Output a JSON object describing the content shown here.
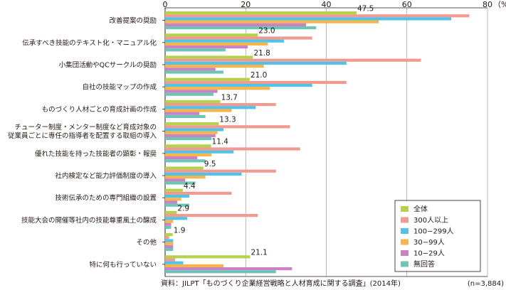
{
  "chart_data": {
    "type": "bar",
    "orientation": "horizontal",
    "unit": "（%）",
    "xlim": [
      0,
      80
    ],
    "xticks": [
      0,
      20,
      40,
      60,
      80
    ],
    "grid": true,
    "legend_position": "bottom-right",
    "categories": [
      [
        "改善提案の奨励"
      ],
      [
        "伝承すべき技能のテキスト化・マニュアル化"
      ],
      [
        "小集団活動やQCサークルの奨励"
      ],
      [
        "自社の技能マップの作成"
      ],
      [
        "ものづくり人材ごとの育成計画の作成"
      ],
      [
        "チューター制度・メンター制度など育成対象の",
        "従業員ごとに専任の指導者を配置する取組の導入"
      ],
      [
        "優れた技能を持った技能者の顕彰・報奨"
      ],
      [
        "社内検定など能力評価制度の導入"
      ],
      [
        "技術伝承のための専門組織の設置"
      ],
      [
        "技能大会の開催等社内の技能尊重風土の醸成"
      ],
      [
        "その他"
      ],
      [
        "特に何も行っていない"
      ]
    ],
    "series": [
      {
        "name": "全体",
        "color": "#b5d34a",
        "values": [
          47.5,
          23.0,
          21.8,
          21.0,
          13.7,
          13.3,
          11.4,
          9.5,
          4.4,
          2.9,
          1.9,
          21.1
        ],
        "labels": [
          "47.5",
          "23.0",
          "21.8",
          "21.0",
          "13.7",
          "13.3",
          "11.4",
          "9.5",
          "4.4",
          "2.9",
          "1.9",
          "21.1"
        ]
      },
      {
        "name": "300人以上",
        "color": "#f19a92",
        "values": [
          75.5,
          36.5,
          63.5,
          45.0,
          27.5,
          31.0,
          33.5,
          27.5,
          16.5,
          23.0,
          1.0,
          2.5
        ]
      },
      {
        "name": "100−299人",
        "color": "#4fc3e8",
        "values": [
          71.0,
          29.5,
          45.0,
          36.5,
          22.5,
          14.5,
          17.0,
          19.0,
          6.0,
          5.5,
          2.0,
          4.5
        ]
      },
      {
        "name": "30−99人",
        "color": "#f6b54a",
        "values": [
          53.0,
          25.5,
          24.5,
          26.0,
          16.5,
          13.0,
          11.5,
          10.0,
          4.0,
          2.0,
          2.0,
          14.5
        ]
      },
      {
        "name": "10−29人",
        "color": "#c983c4",
        "values": [
          35.0,
          20.5,
          12.5,
          13.0,
          8.5,
          12.5,
          8.0,
          5.0,
          3.0,
          1.5,
          2.0,
          31.5
        ]
      },
      {
        "name": "無回答",
        "color": "#6cc5b6",
        "values": [
          37.5,
          15.0,
          14.5,
          12.0,
          10.0,
          11.5,
          10.0,
          7.5,
          6.0,
          1.5,
          2.0,
          27.5
        ]
      }
    ],
    "source": "資料：JILPT「ものづくり企業経営戦略と人材育成に関する調査」(2014年)",
    "n_label": "(n=3,884)"
  }
}
